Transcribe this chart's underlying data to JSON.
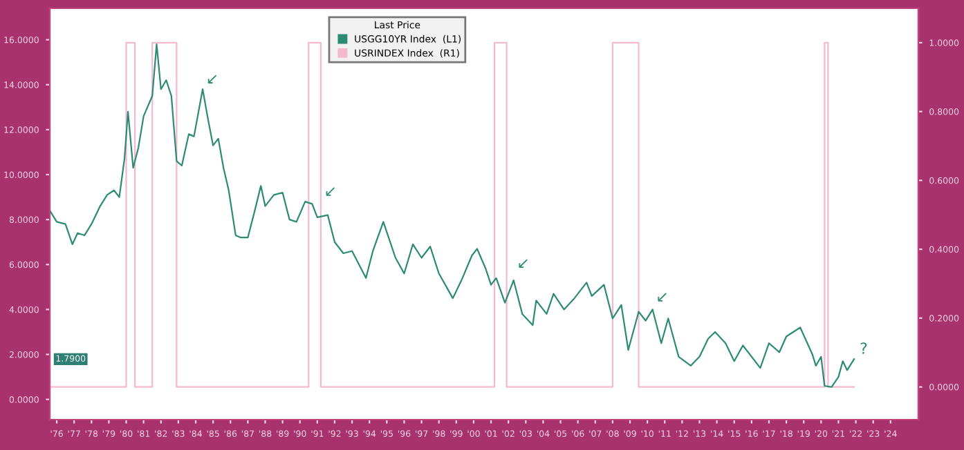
{
  "chart_data": {
    "type": "line",
    "legend_title": "Last Price",
    "legend": "top",
    "grid": false,
    "xlim": [
      1975.6,
      2025.6
    ],
    "xticks": [
      {
        "value": 1976,
        "label": "'76"
      },
      {
        "value": 1977,
        "label": "'77"
      },
      {
        "value": 1978,
        "label": "'78"
      },
      {
        "value": 1979,
        "label": "'79"
      },
      {
        "value": 1980,
        "label": "'80"
      },
      {
        "value": 1981,
        "label": "'81"
      },
      {
        "value": 1982,
        "label": "'82"
      },
      {
        "value": 1983,
        "label": "'83"
      },
      {
        "value": 1984,
        "label": "'84"
      },
      {
        "value": 1985,
        "label": "'85"
      },
      {
        "value": 1986,
        "label": "'86"
      },
      {
        "value": 1987,
        "label": "'87"
      },
      {
        "value": 1988,
        "label": "'88"
      },
      {
        "value": 1989,
        "label": "'89"
      },
      {
        "value": 1990,
        "label": "'90"
      },
      {
        "value": 1991,
        "label": "'91"
      },
      {
        "value": 1992,
        "label": "'92"
      },
      {
        "value": 1993,
        "label": "'93"
      },
      {
        "value": 1994,
        "label": "'94"
      },
      {
        "value": 1995,
        "label": "'95"
      },
      {
        "value": 1996,
        "label": "'96"
      },
      {
        "value": 1997,
        "label": "'97"
      },
      {
        "value": 1998,
        "label": "'98"
      },
      {
        "value": 1999,
        "label": "'99"
      },
      {
        "value": 2000,
        "label": "'00"
      },
      {
        "value": 2001,
        "label": "'01"
      },
      {
        "value": 2002,
        "label": "'02"
      },
      {
        "value": 2003,
        "label": "'03"
      },
      {
        "value": 2004,
        "label": "'04"
      },
      {
        "value": 2005,
        "label": "'05"
      },
      {
        "value": 2006,
        "label": "'06"
      },
      {
        "value": 2007,
        "label": "'07"
      },
      {
        "value": 2008,
        "label": "'08"
      },
      {
        "value": 2009,
        "label": "'09"
      },
      {
        "value": 2010,
        "label": "'10"
      },
      {
        "value": 2011,
        "label": "'11"
      },
      {
        "value": 2012,
        "label": "'12"
      },
      {
        "value": 2013,
        "label": "'13"
      },
      {
        "value": 2014,
        "label": "'14"
      },
      {
        "value": 2015,
        "label": "'15"
      },
      {
        "value": 2016,
        "label": "'16"
      },
      {
        "value": 2017,
        "label": "'17"
      },
      {
        "value": 2018,
        "label": "'18"
      },
      {
        "value": 2019,
        "label": "'19"
      },
      {
        "value": 2020,
        "label": "'20"
      },
      {
        "value": 2021,
        "label": "'21"
      },
      {
        "value": 2022,
        "label": "'22"
      },
      {
        "value": 2023,
        "label": "'23"
      },
      {
        "value": 2024,
        "label": "'24"
      }
    ],
    "ylim": [
      -0.9,
      17.4
    ],
    "yticks": [
      {
        "value": 0,
        "label": "0.0000"
      },
      {
        "value": 2,
        "label": "2.0000"
      },
      {
        "value": 4,
        "label": "4.0000"
      },
      {
        "value": 6,
        "label": "6.0000"
      },
      {
        "value": 8,
        "label": "8.0000"
      },
      {
        "value": 10,
        "label": "10.0000"
      },
      {
        "value": 12,
        "label": "12.0000"
      },
      {
        "value": 14,
        "label": "14.0000"
      },
      {
        "value": 16,
        "label": "16.0000"
      }
    ],
    "y2lim": [
      -0.095,
      1.1
    ],
    "y2ticks": [
      {
        "value": 0,
        "label": "0.0000"
      },
      {
        "value": 0.2,
        "label": "0.2000"
      },
      {
        "value": 0.4,
        "label": "0.4000"
      },
      {
        "value": 0.6,
        "label": "0.6000"
      },
      {
        "value": 0.8,
        "label": "0.8000"
      },
      {
        "value": 1.0,
        "label": "1.0000"
      }
    ],
    "series": [
      {
        "name": "USGG10YR Index  (L1)",
        "color": "#2e8b73",
        "x": [
          1975.6,
          1976.0,
          1976.5,
          1976.9,
          1977.2,
          1977.6,
          1978.0,
          1978.5,
          1978.9,
          1979.3,
          1979.6,
          1979.9,
          1980.1,
          1980.4,
          1980.7,
          1981.0,
          1981.5,
          1981.75,
          1982.0,
          1982.3,
          1982.6,
          1982.9,
          1983.2,
          1983.6,
          1983.9,
          1984.4,
          1984.7,
          1985.0,
          1985.3,
          1985.6,
          1985.9,
          1986.3,
          1986.6,
          1987.0,
          1987.4,
          1987.75,
          1988.0,
          1988.5,
          1989.0,
          1989.4,
          1989.8,
          1990.3,
          1990.7,
          1991.0,
          1991.6,
          1992.0,
          1992.5,
          1993.0,
          1993.8,
          1994.2,
          1994.8,
          1995.5,
          1996.0,
          1996.5,
          1997.0,
          1997.5,
          1998.0,
          1998.8,
          1999.3,
          1999.9,
          2000.2,
          2000.7,
          2001.0,
          2001.3,
          2001.8,
          2002.3,
          2002.8,
          2003.4,
          2003.6,
          2004.2,
          2004.6,
          2005.2,
          2005.8,
          2006.5,
          2006.8,
          2007.5,
          2008.0,
          2008.5,
          2008.9,
          2009.5,
          2009.9,
          2010.3,
          2010.8,
          2011.2,
          2011.8,
          2012.5,
          2013.0,
          2013.5,
          2013.9,
          2014.5,
          2015.0,
          2015.5,
          2016.5,
          2017.0,
          2017.6,
          2018.0,
          2018.8,
          2019.5,
          2019.7,
          2020.0,
          2020.2,
          2020.6,
          2021.0,
          2021.25,
          2021.5,
          2021.9
        ],
        "values": [
          8.4,
          7.9,
          7.8,
          6.9,
          7.4,
          7.3,
          7.8,
          8.6,
          9.1,
          9.3,
          9.0,
          10.7,
          12.8,
          10.3,
          11.2,
          12.6,
          13.5,
          15.8,
          13.8,
          14.2,
          13.5,
          10.6,
          10.4,
          11.8,
          11.7,
          13.8,
          12.5,
          11.3,
          11.6,
          10.3,
          9.3,
          7.3,
          7.2,
          7.2,
          8.4,
          9.5,
          8.6,
          9.1,
          9.2,
          8.0,
          7.9,
          8.8,
          8.7,
          8.1,
          8.2,
          7.0,
          6.5,
          6.6,
          5.4,
          6.6,
          7.9,
          6.3,
          5.6,
          6.9,
          6.3,
          6.8,
          5.6,
          4.5,
          5.3,
          6.4,
          6.7,
          5.8,
          5.1,
          5.4,
          4.3,
          5.3,
          3.8,
          3.3,
          4.4,
          3.8,
          4.7,
          4.0,
          4.5,
          5.2,
          4.6,
          5.1,
          3.6,
          4.2,
          2.2,
          3.9,
          3.5,
          4.0,
          2.5,
          3.6,
          1.9,
          1.5,
          1.9,
          2.7,
          3.0,
          2.5,
          1.7,
          2.4,
          1.4,
          2.5,
          2.1,
          2.8,
          3.2,
          2.0,
          1.5,
          1.9,
          0.6,
          0.55,
          1.0,
          1.7,
          1.3,
          1.79
        ]
      },
      {
        "name": "USRINDEX Index  (R1)",
        "color": "#f4b8cf",
        "axis": "y2",
        "x": [
          1975.6,
          1980.0,
          1980.0,
          1980.5,
          1980.5,
          1981.5,
          1981.5,
          1982.9,
          1982.9,
          1990.5,
          1990.5,
          1991.2,
          1991.2,
          2001.2,
          2001.2,
          2001.9,
          2001.9,
          2008.0,
          2008.0,
          2009.5,
          2009.5,
          2020.2,
          2020.2,
          2020.4,
          2020.4,
          2021.9
        ],
        "values": [
          0,
          0,
          1,
          1,
          0,
          0,
          1,
          1,
          0,
          0,
          1,
          1,
          0,
          0,
          1,
          1,
          0,
          0,
          1,
          1,
          0,
          0,
          1,
          1,
          0,
          0
        ]
      }
    ],
    "annotations": [
      {
        "text": "↙",
        "x": 1984.4,
        "y": 13.8
      },
      {
        "text": "↙",
        "x": 1991.2,
        "y": 8.8
      },
      {
        "text": "↙",
        "x": 2002.3,
        "y": 5.6
      },
      {
        "text": "↙",
        "x": 2010.3,
        "y": 4.1
      },
      {
        "text": "?",
        "x": 2021.9,
        "y": 1.79
      },
      "1.7900"
    ]
  }
}
